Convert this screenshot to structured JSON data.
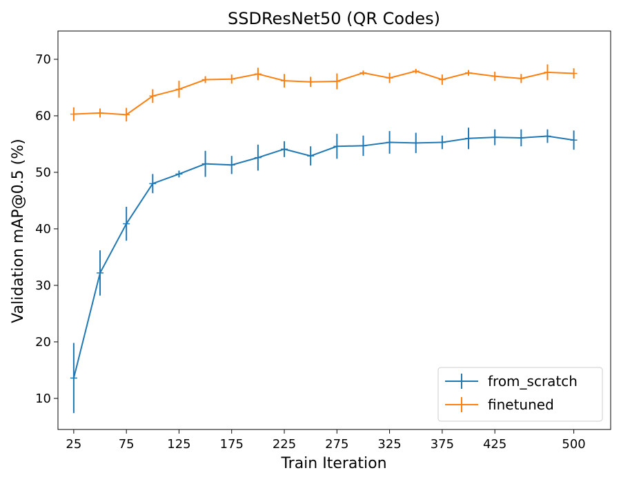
{
  "chart_data": {
    "type": "line",
    "title": "SSDResNet50 (QR Codes)",
    "xlabel": "Train Iteration",
    "ylabel": "Validation mAP@0.5 (%)",
    "xlim": [
      10,
      535
    ],
    "ylim": [
      4.5,
      75
    ],
    "xticks": [
      25,
      75,
      125,
      175,
      225,
      275,
      325,
      375,
      425,
      500
    ],
    "yticks": [
      10,
      20,
      30,
      40,
      50,
      60,
      70
    ],
    "grid": false,
    "legend_position": "lower-right",
    "x": [
      25,
      50,
      75,
      100,
      125,
      150,
      175,
      200,
      225,
      250,
      275,
      300,
      325,
      350,
      375,
      400,
      425,
      450,
      475,
      500
    ],
    "series": [
      {
        "name": "from_scratch",
        "color": "#1f77b4",
        "values": [
          13.6,
          32.2,
          40.9,
          48.0,
          49.7,
          51.5,
          51.3,
          52.6,
          54.1,
          52.9,
          54.6,
          54.7,
          55.3,
          55.2,
          55.3,
          56.0,
          56.2,
          56.1,
          56.4,
          55.7
        ],
        "errors": [
          6.2,
          4.0,
          3.0,
          1.7,
          0.6,
          2.3,
          1.6,
          2.3,
          1.4,
          1.7,
          2.2,
          1.8,
          2.0,
          1.8,
          1.2,
          1.9,
          1.4,
          1.5,
          1.2,
          1.7
        ]
      },
      {
        "name": "finetuned",
        "color": "#ff7f0e",
        "values": [
          60.3,
          60.5,
          60.2,
          63.5,
          64.7,
          66.4,
          66.5,
          67.4,
          66.2,
          66.0,
          66.1,
          67.6,
          66.7,
          67.9,
          66.4,
          67.6,
          67.0,
          66.6,
          67.7,
          67.5
        ],
        "errors": [
          1.2,
          0.8,
          1.2,
          1.2,
          1.5,
          0.6,
          0.8,
          1.1,
          1.2,
          0.9,
          1.4,
          0.4,
          0.9,
          0.4,
          0.9,
          0.5,
          0.8,
          0.8,
          1.4,
          0.9
        ]
      }
    ]
  }
}
